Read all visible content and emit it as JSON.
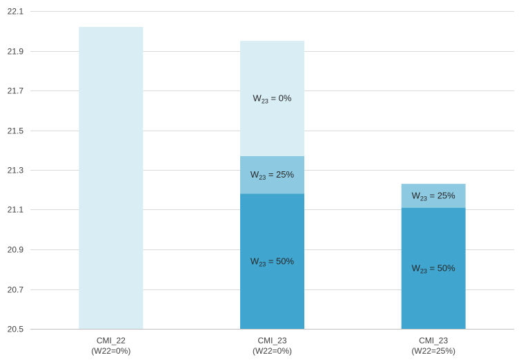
{
  "chart_data": {
    "type": "bar",
    "stacked": true,
    "title": "",
    "xlabel": "",
    "ylabel": "",
    "ylim": [
      20.5,
      22.1
    ],
    "yticks": [
      "20.5",
      "20.7",
      "20.9",
      "21.1",
      "21.3",
      "21.5",
      "21.7",
      "21.9",
      "22.1"
    ],
    "grid": true,
    "legend": "none",
    "categories": [
      {
        "line1": "CMI_22",
        "line2": "(W22=0%)"
      },
      {
        "line1": "CMI_23",
        "line2": "(W22=0%)"
      },
      {
        "line1": "CMI_23",
        "line2": "(W22=25%)"
      }
    ],
    "colors": {
      "w0": "#d9edf5",
      "w25": "#8dcae2",
      "w50": "#40a6cf"
    },
    "bars": [
      {
        "segments": [
          {
            "key": "w0",
            "from": 20.5,
            "to": 22.02,
            "label": ""
          }
        ]
      },
      {
        "segments": [
          {
            "key": "w50",
            "from": 20.5,
            "to": 21.18,
            "label": {
              "pre": "W",
              "sub": "23",
              "post": " = 50%"
            }
          },
          {
            "key": "w25",
            "from": 21.18,
            "to": 21.37,
            "label": {
              "pre": "W",
              "sub": "23",
              "post": " = 25%"
            }
          },
          {
            "key": "w0",
            "from": 21.37,
            "to": 21.95,
            "label": {
              "pre": "W",
              "sub": "23",
              "post": " = 0%"
            }
          }
        ]
      },
      {
        "segments": [
          {
            "key": "w50",
            "from": 20.5,
            "to": 21.11,
            "label": {
              "pre": "W",
              "sub": "23",
              "post": " = 50%"
            }
          },
          {
            "key": "w25",
            "from": 21.11,
            "to": 21.23,
            "label": {
              "pre": "W",
              "sub": "23",
              "post": " = 25%"
            }
          }
        ]
      }
    ]
  }
}
